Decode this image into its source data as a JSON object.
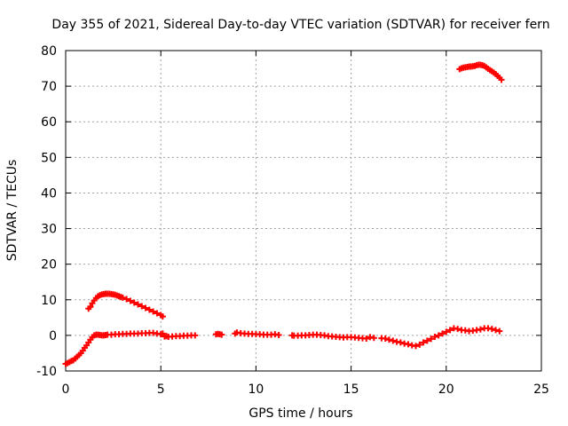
{
  "chart_data": {
    "type": "scatter",
    "title": "Day 355 of 2021, Sidereal Day-to-day VTEC variation (SDTVAR) for receiver fern",
    "xlabel": "GPS time / hours",
    "ylabel": "SDTVAR / TECUs",
    "xlim": [
      0,
      25
    ],
    "ylim": [
      -10,
      80
    ],
    "xticks": [
      0,
      5,
      10,
      15,
      20,
      25
    ],
    "yticks": [
      -10,
      0,
      10,
      20,
      30,
      40,
      50,
      60,
      70,
      80
    ],
    "grid": true,
    "marker": "plus",
    "color": "#ff0000",
    "series": [
      {
        "name": "main",
        "x": [
          0.0,
          0.1,
          0.2,
          0.3,
          0.4,
          0.5,
          0.6,
          0.7,
          0.8,
          0.9,
          1.0,
          1.1,
          1.2,
          1.3,
          1.4,
          1.5,
          1.6,
          1.7,
          1.8,
          1.9,
          2.0,
          2.1,
          2.2,
          2.4,
          2.6,
          2.8,
          3.0,
          3.2,
          3.4,
          3.6,
          3.8,
          4.0,
          4.2,
          4.4,
          4.6,
          4.8,
          5.0,
          5.1,
          5.2,
          5.3,
          5.4,
          5.6,
          5.8,
          6.0,
          6.2,
          6.4,
          6.6,
          6.8,
          7.9,
          8.0,
          8.1,
          8.2,
          8.9,
          9.0,
          9.2,
          9.4,
          9.6,
          9.8,
          10.0,
          10.2,
          10.4,
          10.6,
          10.8,
          11.0,
          11.2,
          11.9,
          12.0,
          12.2,
          12.4,
          12.6,
          12.8,
          13.0,
          13.2,
          13.4,
          13.6,
          13.8,
          14.0,
          14.2,
          14.4,
          14.6,
          14.8,
          15.0,
          15.2,
          15.4,
          15.6,
          15.8,
          16.0,
          16.2,
          16.6,
          16.8,
          17.0,
          17.2,
          17.4,
          17.6,
          17.8,
          18.0,
          18.2,
          18.4,
          18.6,
          18.8,
          19.0,
          19.2,
          19.4,
          19.6,
          19.8,
          20.0,
          20.2,
          20.4,
          20.6,
          20.8,
          21.0,
          21.2,
          21.4,
          21.6,
          21.8,
          22.0,
          22.2,
          22.4,
          22.6,
          22.8
        ],
        "y": [
          -8.0,
          -7.8,
          -7.5,
          -7.2,
          -7.0,
          -6.5,
          -6.0,
          -5.5,
          -5.0,
          -4.3,
          -3.5,
          -2.8,
          -2.0,
          -1.2,
          -0.5,
          0.0,
          0.2,
          0.2,
          0.1,
          0.0,
          0.0,
          0.1,
          0.2,
          0.2,
          0.3,
          0.3,
          0.4,
          0.4,
          0.5,
          0.5,
          0.5,
          0.6,
          0.6,
          0.7,
          0.7,
          0.5,
          0.3,
          0.5,
          -0.3,
          -0.2,
          -0.4,
          -0.3,
          -0.2,
          -0.2,
          -0.1,
          -0.1,
          0.0,
          0.0,
          0.3,
          0.4,
          0.3,
          0.2,
          0.5,
          0.8,
          0.6,
          0.5,
          0.4,
          0.4,
          0.3,
          0.3,
          0.2,
          0.2,
          0.2,
          0.3,
          0.1,
          0.0,
          -0.1,
          -0.1,
          0.0,
          0.0,
          0.1,
          0.2,
          0.2,
          0.1,
          0.0,
          -0.2,
          -0.3,
          -0.4,
          -0.5,
          -0.6,
          -0.5,
          -0.5,
          -0.6,
          -0.7,
          -0.8,
          -0.9,
          -0.5,
          -0.7,
          -0.8,
          -0.9,
          -1.2,
          -1.5,
          -1.8,
          -2.0,
          -2.3,
          -2.5,
          -2.8,
          -3.0,
          -2.6,
          -2.0,
          -1.5,
          -1.0,
          -0.4,
          0.0,
          0.5,
          1.0,
          1.5,
          2.0,
          1.8,
          1.5,
          1.4,
          1.2,
          1.3,
          1.5,
          1.7,
          2.0,
          2.0,
          1.8,
          1.5,
          1.2
        ]
      },
      {
        "name": "early-arc",
        "x": [
          1.2,
          1.3,
          1.4,
          1.5,
          1.6,
          1.7,
          1.8,
          1.9,
          2.0,
          2.1,
          2.2,
          2.3,
          2.4,
          2.5,
          2.6,
          2.7,
          2.8,
          2.9,
          3.0,
          3.2,
          3.4,
          3.6,
          3.8,
          4.0,
          4.2,
          4.4,
          4.6,
          4.8,
          5.0,
          5.1
        ],
        "y": [
          7.5,
          8.0,
          9.0,
          9.8,
          10.5,
          11.0,
          11.3,
          11.5,
          11.6,
          11.7,
          11.7,
          11.7,
          11.6,
          11.5,
          11.4,
          11.2,
          11.0,
          10.8,
          10.6,
          10.2,
          9.7,
          9.2,
          8.7,
          8.2,
          7.7,
          7.2,
          6.7,
          6.2,
          5.7,
          5.3
        ]
      },
      {
        "name": "late-arc",
        "x": [
          20.7,
          20.8,
          20.9,
          21.0,
          21.1,
          21.2,
          21.3,
          21.4,
          21.5,
          21.6,
          21.7,
          21.8,
          21.9,
          22.0,
          22.1,
          22.2,
          22.3,
          22.4,
          22.5,
          22.6,
          22.7,
          22.8,
          22.9
        ],
        "y": [
          74.8,
          75.0,
          75.2,
          75.3,
          75.4,
          75.5,
          75.5,
          75.6,
          75.7,
          75.9,
          76.0,
          76.0,
          75.9,
          75.7,
          75.3,
          74.9,
          74.5,
          74.2,
          73.8,
          73.4,
          72.9,
          72.4,
          71.8
        ]
      }
    ]
  }
}
